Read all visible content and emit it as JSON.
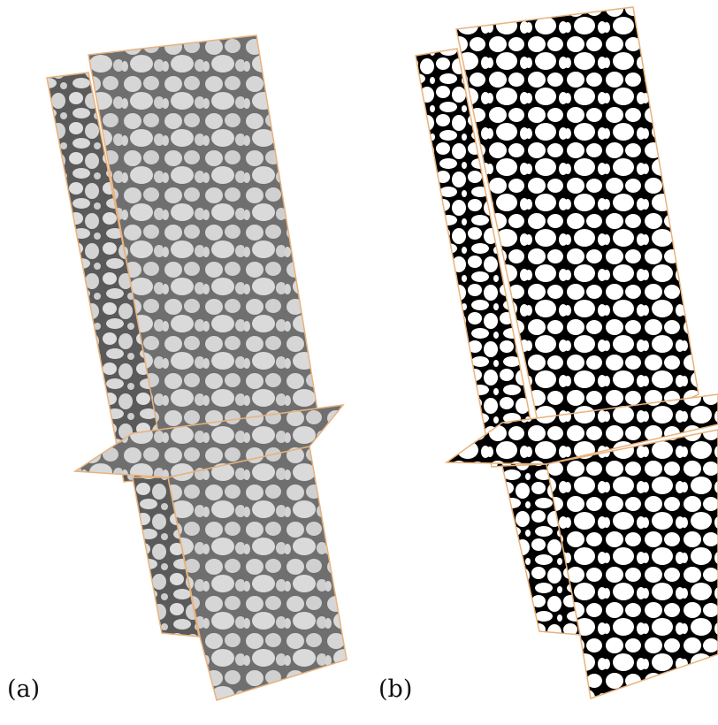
{
  "panels": [
    {
      "id": "a",
      "label": "(a)",
      "style": "grayscale-ct-slices"
    },
    {
      "id": "b",
      "label": "(b)",
      "style": "binary-segmented-slices"
    }
  ],
  "colors": {
    "frame_edge": "#e8b27d",
    "gray_background": "#d6d6d6",
    "gray_matrix": "#6f6f6f",
    "binary_white": "#ffffff",
    "binary_black": "#000000"
  }
}
